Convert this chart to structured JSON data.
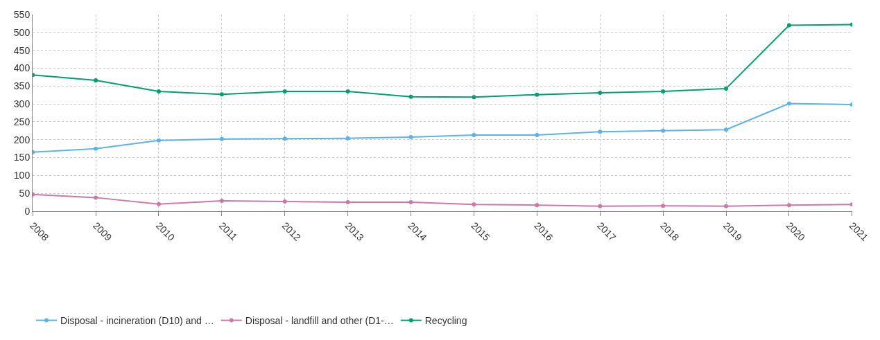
{
  "chart_data": {
    "type": "line",
    "categories": [
      "2008",
      "2009",
      "2010",
      "2011",
      "2012",
      "2013",
      "2014",
      "2015",
      "2016",
      "2017",
      "2018",
      "2019",
      "2020",
      "2021"
    ],
    "series": [
      {
        "name": "Disposal - incineration (D10) and …",
        "color": "#5db3e6",
        "values": [
          165,
          175,
          198,
          202,
          203,
          204,
          207,
          213,
          213,
          222,
          225,
          228,
          301,
          298
        ]
      },
      {
        "name": "Disposal - landfill and other (D1-…",
        "color": "#cc79a7",
        "values": [
          47,
          38,
          20,
          29,
          27,
          25,
          25,
          19,
          17,
          14,
          15,
          14,
          17,
          19
        ]
      },
      {
        "name": "Recycling",
        "color": "#009e73",
        "values": [
          381,
          366,
          335,
          327,
          335,
          335,
          320,
          319,
          326,
          331,
          335,
          343,
          520,
          522
        ]
      }
    ],
    "ylim": [
      0,
      550
    ],
    "yticks": [
      0,
      50,
      100,
      150,
      200,
      250,
      300,
      350,
      400,
      450,
      500,
      550
    ],
    "grid": true,
    "legend": "bottom left",
    "marker": "circle",
    "line_style": "solid"
  }
}
